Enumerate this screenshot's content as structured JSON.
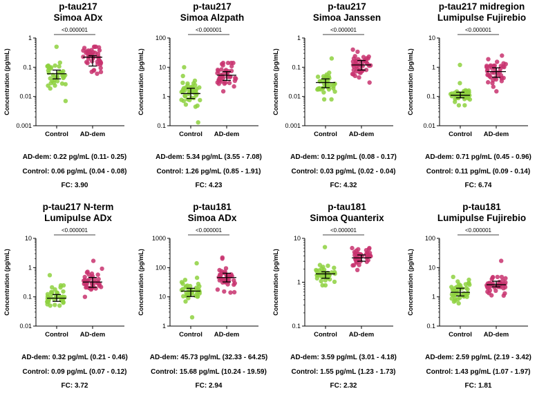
{
  "colors": {
    "control": "#8ed13f",
    "ad": "#c8336f"
  },
  "group_labels": [
    "Control",
    "AD-dem"
  ],
  "ylabel": "Concentration (pg/mL)",
  "chart_data": [
    {
      "type": "scatter",
      "title": [
        "p-tau217",
        "Simoa ADx"
      ],
      "ylabel": "Concentration (pg/mL)",
      "yscale": "log",
      "ylim": [
        0.001,
        1
      ],
      "yticks": [
        "0.001",
        "0.01",
        "0.1",
        "1"
      ],
      "categories": [
        "Control",
        "AD-dem"
      ],
      "series": [
        {
          "name": "Control",
          "median": 0.06,
          "iqr": [
            0.04,
            0.08
          ],
          "min": 0.007,
          "max": 0.5
        },
        {
          "name": "AD-dem",
          "median": 0.22,
          "iqr": [
            0.11,
            0.25
          ],
          "min": 0.06,
          "max": 0.5
        }
      ],
      "pvalue": "<0.000001",
      "summary": [
        "AD-dem: 0.22 pg/mL (0.11- 0.25)",
        "Control: 0.06 pg/mL (0.04 - 0.08)",
        "FC: 3.90"
      ]
    },
    {
      "type": "scatter",
      "title": [
        "p-tau217",
        "Simoa Alzpath"
      ],
      "ylabel": "Concentration (pg/mL)",
      "yscale": "log",
      "ylim": [
        0.1,
        100
      ],
      "yticks": [
        "0.1",
        "1",
        "10",
        "100"
      ],
      "categories": [
        "Control",
        "AD-dem"
      ],
      "series": [
        {
          "name": "Control",
          "median": 1.26,
          "iqr": [
            0.85,
            1.91
          ],
          "min": 0.13,
          "max": 10
        },
        {
          "name": "AD-dem",
          "median": 5.34,
          "iqr": [
            3.55,
            7.08
          ],
          "min": 1.5,
          "max": 14
        }
      ],
      "pvalue": "<0.000001",
      "summary": [
        "AD-dem: 5.34 pg/mL (3.55 - 7.08)",
        "Control: 1.26 pg/mL (0.85 - 1.91)",
        "FC: 4.23"
      ]
    },
    {
      "type": "scatter",
      "title": [
        "p-tau217",
        "Simoa Janssen"
      ],
      "ylabel": "Concentration (pg/mL)",
      "yscale": "log",
      "ylim": [
        0.001,
        1
      ],
      "yticks": [
        "0.001",
        "0.01",
        "0.1",
        "1"
      ],
      "categories": [
        "Control",
        "AD-dem"
      ],
      "series": [
        {
          "name": "Control",
          "median": 0.03,
          "iqr": [
            0.02,
            0.04
          ],
          "min": 0.008,
          "max": 0.2
        },
        {
          "name": "AD-dem",
          "median": 0.12,
          "iqr": [
            0.08,
            0.17
          ],
          "min": 0.03,
          "max": 0.4
        }
      ],
      "pvalue": "<0.000001",
      "summary": [
        "AD-dem: 0.12 pg/mL (0.08 - 0.17)",
        "Control: 0.03 pg/mL (0.02 - 0.04)",
        "FC: 4.32"
      ]
    },
    {
      "type": "scatter",
      "title": [
        "p-tau217 midregion",
        "Lumipulse Fujirebio"
      ],
      "ylabel": "Concentration (pg/mL)",
      "yscale": "log",
      "ylim": [
        0.01,
        10
      ],
      "yticks": [
        "0.01",
        "0.1",
        "1",
        "10"
      ],
      "categories": [
        "Control",
        "AD-dem"
      ],
      "series": [
        {
          "name": "Control",
          "median": 0.11,
          "iqr": [
            0.09,
            0.14
          ],
          "min": 0.05,
          "max": 1.2
        },
        {
          "name": "AD-dem",
          "median": 0.71,
          "iqr": [
            0.45,
            0.96
          ],
          "min": 0.15,
          "max": 2.5
        }
      ],
      "pvalue": "<0.000001",
      "summary": [
        "AD-dem: 0.71 pg/mL (0.45 - 0.96)",
        "Control: 0.11 pg/mL (0.09 - 0.14)",
        "FC: 6.74"
      ]
    },
    {
      "type": "scatter",
      "title": [
        "p-tau217 N-term",
        "Lumipulse ADx"
      ],
      "ylabel": "Concentration (pg/mL)",
      "yscale": "log",
      "ylim": [
        0.01,
        10
      ],
      "yticks": [
        "0.01",
        "0.1",
        "1",
        "10"
      ],
      "categories": [
        "Control",
        "AD-dem"
      ],
      "series": [
        {
          "name": "Control",
          "median": 0.09,
          "iqr": [
            0.07,
            0.12
          ],
          "min": 0.05,
          "max": 0.55
        },
        {
          "name": "AD-dem",
          "median": 0.32,
          "iqr": [
            0.21,
            0.46
          ],
          "min": 0.1,
          "max": 1.7
        }
      ],
      "pvalue": "<0.000001",
      "summary": [
        "AD-dem: 0.32 pg/mL (0.21 - 0.46)",
        "Control: 0.09 pg/mL (0.07 - 0.12)",
        "FC: 3.72"
      ]
    },
    {
      "type": "scatter",
      "title": [
        "p-tau181",
        "Simoa ADx"
      ],
      "ylabel": "Concentration (pg/mL)",
      "yscale": "log",
      "ylim": [
        1,
        1000
      ],
      "yticks": [
        "1",
        "10",
        "100",
        "1000"
      ],
      "categories": [
        "Control",
        "AD-dem"
      ],
      "series": [
        {
          "name": "Control",
          "median": 15.68,
          "iqr": [
            10.24,
            19.59
          ],
          "min": 2,
          "max": 140
        },
        {
          "name": "AD-dem",
          "median": 45.73,
          "iqr": [
            32.33,
            64.25
          ],
          "min": 14,
          "max": 220
        }
      ],
      "pvalue": "<0.000001",
      "summary": [
        "AD-dem: 45.73 pg/mL (32.33 - 64.25)",
        "Control: 15.68 pg/mL (10.24 - 19.59)",
        "FC: 2.94"
      ]
    },
    {
      "type": "scatter",
      "title": [
        "p-tau181",
        "Simoa Quanterix"
      ],
      "ylabel": "Concentration (pg/mL)",
      "yscale": "log",
      "ylim": [
        0.1,
        10
      ],
      "yticks": [
        "0.1",
        "1",
        "10"
      ],
      "categories": [
        "Control",
        "AD-dem"
      ],
      "series": [
        {
          "name": "Control",
          "median": 1.55,
          "iqr": [
            1.23,
            1.73
          ],
          "min": 0.85,
          "max": 6.3
        },
        {
          "name": "AD-dem",
          "median": 3.59,
          "iqr": [
            3.01,
            4.18
          ],
          "min": 1.9,
          "max": 6
        }
      ],
      "pvalue": "<0.000001",
      "summary": [
        "AD-dem: 3.59 pg/mL (3.01 - 4.18)",
        "Control: 1.55 pg/mL (1.23 - 1.73)",
        "FC: 2.32"
      ]
    },
    {
      "type": "scatter",
      "title": [
        "p-tau181",
        "Lumipulse Fujirebio"
      ],
      "ylabel": "Concentration (pg/mL)",
      "yscale": "log",
      "ylim": [
        0.1,
        100
      ],
      "yticks": [
        "0.1",
        "1",
        "10",
        "100"
      ],
      "categories": [
        "Control",
        "AD-dem"
      ],
      "series": [
        {
          "name": "Control",
          "median": 1.43,
          "iqr": [
            1.07,
            1.97
          ],
          "min": 0.6,
          "max": 4.8
        },
        {
          "name": "AD-dem",
          "median": 2.59,
          "iqr": [
            2.19,
            3.42
          ],
          "min": 1.1,
          "max": 17
        }
      ],
      "pvalue": "<0.000001",
      "summary": [
        "AD-dem: 2.59 pg/mL (2.19 - 3.42)",
        "Control: 1.43 pg/mL (1.07 - 1.97)",
        "FC: 1.81"
      ]
    }
  ]
}
